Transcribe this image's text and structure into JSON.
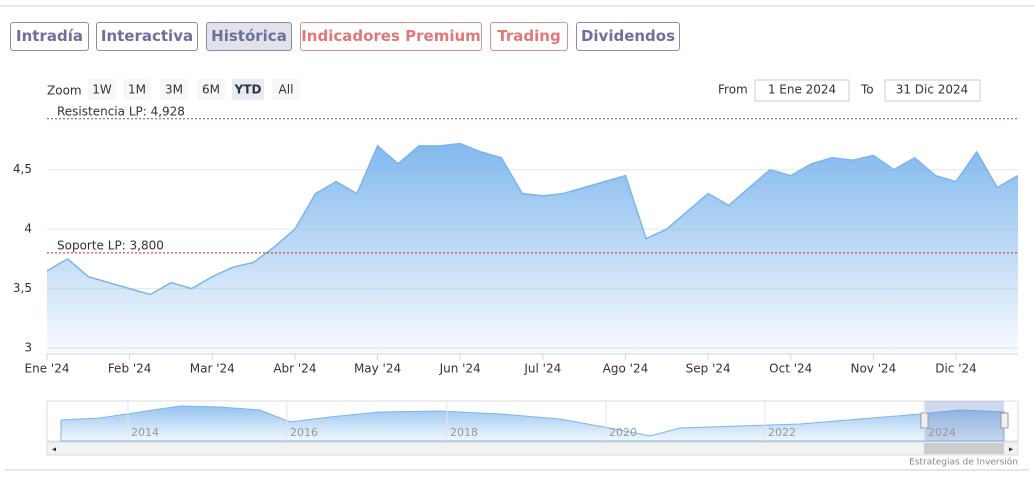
{
  "ui": {
    "tabs": [
      "Intradía",
      "Interactiva",
      "Histórica",
      "Indicadores Premium",
      "Trading",
      "Dividendos"
    ],
    "zoom_label": "Zoom",
    "zoom_buttons": [
      "1W",
      "1M",
      "3M",
      "6M",
      "YTD",
      "All"
    ],
    "from_label": "From",
    "from_value": "1 Ene 2024",
    "to_label": "To",
    "to_value": "31 Dic 2024",
    "navigator_labels": [
      "2014",
      "2016",
      "2018",
      "2020",
      "2022",
      "2024"
    ],
    "credits": "Estrategias de Inversión"
  },
  "chart_data": {
    "type": "area",
    "color": "#7cb5ec",
    "categories": [
      "Ene '24",
      null,
      null,
      null,
      "Feb '24",
      null,
      null,
      null,
      "Mar '24",
      null,
      null,
      null,
      "Abr '24",
      null,
      null,
      null,
      "May '24",
      null,
      null,
      null,
      "Jun '24",
      null,
      null,
      null,
      "Jul '24",
      null,
      null,
      null,
      "Ago '24",
      null,
      null,
      null,
      "Sep '24",
      null,
      null,
      null,
      "Oct '24",
      null,
      null,
      null,
      "Nov '24",
      null,
      null,
      null,
      "Dic '24",
      null,
      null,
      null
    ],
    "values": [
      3.65,
      3.75,
      3.6,
      3.55,
      3.5,
      3.45,
      3.55,
      3.5,
      3.6,
      3.68,
      3.72,
      3.85,
      4.0,
      4.3,
      4.4,
      4.3,
      4.7,
      4.55,
      4.7,
      4.7,
      4.72,
      4.65,
      4.6,
      4.3,
      4.28,
      4.3,
      4.35,
      4.4,
      4.45,
      3.92,
      4.0,
      4.15,
      4.3,
      4.2,
      4.35,
      4.5,
      4.45,
      4.55,
      4.6,
      4.58,
      4.62,
      4.5,
      4.6,
      4.45,
      4.4,
      4.65,
      4.35,
      4.45
    ],
    "ylim": [
      2.95,
      4.96
    ],
    "yticks": [
      3,
      {
        "value": 3.5,
        "label": "3,5"
      },
      4,
      {
        "value": 4.5,
        "label": "4,5"
      }
    ],
    "grid": true,
    "plot_lines": [
      {
        "value": 4.928,
        "label": "Resistencia LP: 4,928",
        "color": "#2e7d32"
      },
      {
        "value": 3.8,
        "label": "Soporte LP: 3,800",
        "color": "#c62828"
      }
    ]
  }
}
